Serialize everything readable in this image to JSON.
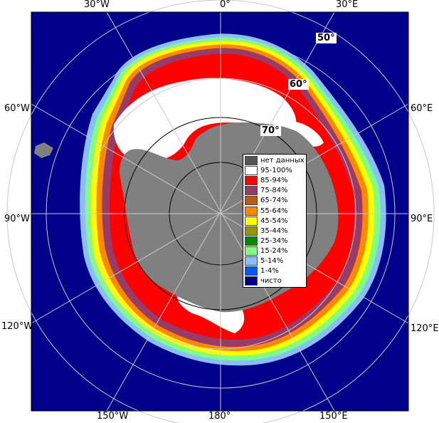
{
  "longitude_labels": {
    "top": [
      "30°W",
      "0°",
      "30°E"
    ],
    "bottom": [
      "150°W",
      "180°",
      "150°E"
    ],
    "left": [
      "60°W",
      "90°W",
      "120°W"
    ],
    "right": [
      "60°E",
      "90°E",
      "120°E"
    ]
  },
  "latitude_labels": [
    "50°",
    "60°",
    "70°"
  ],
  "legend": [
    {
      "label": "нет данных",
      "color": "#555555"
    },
    {
      "label": "95-100%",
      "color": "#ffffff"
    },
    {
      "label": "85-94%",
      "color": "#ff0000"
    },
    {
      "label": "75-84%",
      "color": "#9a3a66"
    },
    {
      "label": "65-74%",
      "color": "#c05a10"
    },
    {
      "label": "55-64%",
      "color": "#ff8800"
    },
    {
      "label": "45-54%",
      "color": "#ffff00"
    },
    {
      "label": "35-44%",
      "color": "#8f9a00"
    },
    {
      "label": "25-34%",
      "color": "#008800"
    },
    {
      "label": "15-24%",
      "color": "#80ff80"
    },
    {
      "label": "5-14%",
      "color": "#88c0ff"
    },
    {
      "label": "1-4%",
      "color": "#0055ff"
    },
    {
      "label": "чисто",
      "color": "#000088"
    }
  ],
  "colors": {
    "ocean": "#00008b",
    "land": "#808080",
    "grid": "#c8c8c8"
  }
}
